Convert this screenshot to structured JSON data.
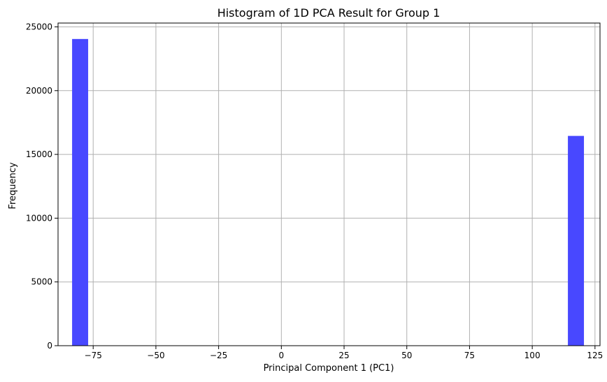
{
  "chart_data": {
    "type": "bar",
    "title": "Histogram of 1D PCA Result for Group 1",
    "xlabel": "Principal Component 1 (PC1)",
    "ylabel": "Frequency",
    "xlim": [
      -89,
      127
    ],
    "ylim": [
      0,
      25300
    ],
    "xticks": [
      -75,
      -50,
      -25,
      0,
      25,
      50,
      75,
      100,
      125
    ],
    "xtick_labels": [
      "−75",
      "−50",
      "−25",
      "0",
      "25",
      "50",
      "75",
      "100",
      "125"
    ],
    "yticks": [
      0,
      5000,
      10000,
      15000,
      20000,
      25000
    ],
    "ytick_labels": [
      "0",
      "5000",
      "10000",
      "15000",
      "20000",
      "25000"
    ],
    "bins": [
      {
        "x0": -83.4,
        "x1": -77.0,
        "value": 24050
      },
      {
        "x0": 114.2,
        "x1": 120.6,
        "value": 16450
      }
    ],
    "bar_color": "#4848ff",
    "grid": true
  }
}
